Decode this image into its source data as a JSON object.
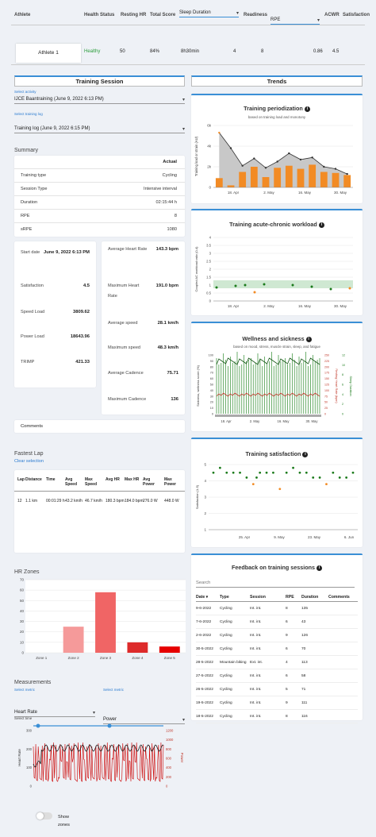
{
  "header": {
    "columns": [
      "Athlete",
      "Health Status",
      "Resting HR",
      "Total Score",
      "Sleep Duration",
      "Readiness",
      "RPE",
      "ACWR",
      "Satisfaction"
    ]
  },
  "athlete_row": {
    "name": "Athlete 1",
    "health": "Healthy",
    "resting_hr": "50",
    "total_score": "84%",
    "sleep": "8h30min",
    "readiness": "4",
    "rpe": "8",
    "acwr": "0.86",
    "satisfaction": "4.5"
  },
  "training_session": {
    "title": "Training Session",
    "activity_label": "Select activity",
    "activity_value": "IJCE Baantraining (June 9, 2022 6:13 PM)",
    "log_label": "Select training log",
    "log_value": "Training log (June 9, 2022 6:15 PM)"
  },
  "summary": {
    "title": "Summary",
    "actual_header": "Actual",
    "rows": [
      [
        "Training type",
        "Cycling"
      ],
      [
        "Session Type",
        "Intensive interval"
      ],
      [
        "Duration",
        "02:15:44 h"
      ],
      [
        "RPE",
        "8"
      ],
      [
        "sRPE",
        "1080"
      ]
    ]
  },
  "stats_left": [
    [
      "Start date",
      "June 9, 2022 6:13 PM"
    ],
    [
      "Satisfaction",
      "4.5"
    ],
    [
      "Speed Load",
      "3809.62"
    ],
    [
      "Power Load",
      "18643.96"
    ],
    [
      "TRIMP",
      "421.33"
    ]
  ],
  "stats_right": [
    [
      "Average Heart Rate",
      "143.3 bpm"
    ],
    [
      "Maximum Heart Rate",
      "191.0 bpm"
    ],
    [
      "Average speed",
      "28.1 km/h"
    ],
    [
      "Maximum speed",
      "48.3 km/h"
    ],
    [
      "Average Cadence",
      "75.71"
    ],
    [
      "Maximum Cadence",
      "136"
    ]
  ],
  "comments_label": "Comments",
  "fastest_lap": {
    "title": "Fastest Lap",
    "clear": "Clear selection",
    "headers": [
      "Lap",
      "Distance",
      "Time",
      "Avg Speed",
      "Max Speed",
      "Avg HR",
      "Max HR",
      "Avg Power",
      "Max Power"
    ],
    "row": [
      "12",
      "1.1 km",
      "00:01:29 h",
      "43.2 km/h",
      "46.7 km/h",
      "180.3 bpm",
      "184.0 bpm",
      "276.0 W",
      "448.0 W"
    ]
  },
  "hr_zones": {
    "title": "HR Zones"
  },
  "measurements": {
    "title": "Measurements",
    "metric_label": "Select metric",
    "metric1": "Heart Rate",
    "metric2": "Power",
    "time_label": "Select time",
    "show_zones": "Show zones",
    "y_left_label": "Heart Rate",
    "y_right_label": "Power"
  },
  "trends": {
    "title": "Trends"
  },
  "periodization": {
    "title": "Training periodization",
    "subtitle": "based on training load and monotony",
    "ylabel": "Training load or strain (AU)"
  },
  "acwr_chart": {
    "title": "Training acute-chronic workload",
    "ylabel": "Coupled AC workload ratio (0-4)"
  },
  "wellness": {
    "title": "Wellness and sickness",
    "subtitle": "based on mood, stress, muscle strain, sleep, and fatigue",
    "ylabel": "Sickness, wellness score (%)",
    "right1": "Resting Heart Rate (bpm)",
    "right2": "Sleep Duration"
  },
  "satisfaction_chart": {
    "title": "Training satisfaction",
    "ylabel": "Satisfaction (1-5)"
  },
  "feedback": {
    "title": "Feedback on training sessions",
    "search_placeholder": "Search",
    "headers": [
      "Date",
      "Type",
      "Session",
      "RPE",
      "Duration",
      "Comments"
    ],
    "rows": [
      [
        "9-6-2022",
        "Cycling",
        "Int. int.",
        "8",
        "135",
        ""
      ],
      [
        "7-6-2022",
        "Cycling",
        "Int. int.",
        "6",
        "43",
        ""
      ],
      [
        "2-6-2022",
        "Cycling",
        "Int. int.",
        "9",
        "126",
        ""
      ],
      [
        "30-5-2022",
        "Cycling",
        "Int. int.",
        "6",
        "70",
        ""
      ],
      [
        "28-5-2022",
        "Mountain biking",
        "Ext. int.",
        "4",
        "113",
        ""
      ],
      [
        "27-5-2022",
        "Cycling",
        "Int. int.",
        "6",
        "58",
        ""
      ],
      [
        "26-5-2022",
        "Cycling",
        "Int. int.",
        "5",
        "71",
        ""
      ],
      [
        "19-5-2022",
        "Cycling",
        "Int. int.",
        "9",
        "111",
        ""
      ],
      [
        "18-5-2022",
        "Cycling",
        "Int. int.",
        "8",
        "116",
        ""
      ]
    ]
  },
  "chart_data": [
    {
      "type": "bar",
      "title": "Training periodization",
      "ylabel": "Training load or strain (AU)",
      "x_ticks": [
        "18. Apr",
        "2. May",
        "16. May",
        "30. May"
      ],
      "y_ticks": [
        "0",
        "2k",
        "4k",
        "6k"
      ],
      "ylim": [
        0,
        6000
      ],
      "series": [
        {
          "values": [
            900,
            200,
            1500,
            2000,
            1000,
            1900,
            2100,
            1800,
            2200,
            1500,
            1400,
            1200
          ]
        },
        {
          "values": [
            5300,
            3800,
            2100,
            2800,
            1900,
            2500,
            3300,
            2700,
            2900,
            2000,
            1800,
            1300
          ]
        }
      ]
    },
    {
      "type": "scatter",
      "title": "Training acute-chronic workload",
      "ylabel": "Coupled AC workload ratio (0-4)",
      "x_ticks": [
        "18. Apr",
        "2. May",
        "16. May",
        "30. May"
      ],
      "y_ticks": [
        "0",
        "0.5",
        "1",
        "1.5",
        "2",
        "2.5",
        "3",
        "3.5",
        "4"
      ],
      "ylim": [
        0,
        4
      ],
      "points": [
        [
          0,
          0.85
        ],
        [
          2,
          0.95
        ],
        [
          3,
          1.0
        ],
        [
          4,
          0.55
        ],
        [
          5,
          1.05
        ],
        [
          8,
          1.0
        ],
        [
          10,
          0.9
        ],
        [
          12,
          0.75
        ],
        [
          14,
          0.8
        ]
      ],
      "band": [
        0.8,
        1.3
      ]
    },
    {
      "type": "line",
      "title": "Wellness and sickness",
      "ylabel": "Sickness, wellness score (%)",
      "y_ticks": [
        "0",
        "10",
        "20",
        "30",
        "40",
        "50",
        "60",
        "70",
        "80",
        "90",
        "100"
      ],
      "x_ticks": [
        "18. Apr",
        "2. May",
        "16. May",
        "30. May"
      ],
      "right_ticks_1": [
        "0",
        "25",
        "50",
        "75",
        "100",
        "125",
        "150",
        "175",
        "200",
        "225",
        "250"
      ],
      "right_ticks_2": [
        "0",
        "2",
        "4",
        "6",
        "8",
        "10",
        "12"
      ]
    },
    {
      "type": "scatter",
      "title": "Training satisfaction",
      "ylabel": "Satisfaction (1-5)",
      "y_ticks": [
        "1",
        "2",
        "3",
        "4",
        "5"
      ],
      "ylim": [
        1,
        5
      ],
      "x_ticks": [
        "25. Apr",
        "9. May",
        "23. May",
        "6. Jun"
      ],
      "points": [
        [
          0,
          4.5
        ],
        [
          1,
          4.8
        ],
        [
          2,
          4.5
        ],
        [
          3,
          4.5
        ],
        [
          4,
          4.5
        ],
        [
          5,
          4.2
        ],
        [
          6,
          3.8
        ],
        [
          6.5,
          4.2
        ],
        [
          7,
          4.5
        ],
        [
          8,
          4.5
        ],
        [
          9,
          4.5
        ],
        [
          10,
          3.5
        ],
        [
          11,
          4.5
        ],
        [
          12,
          4.8
        ],
        [
          13,
          4.5
        ],
        [
          14,
          4.5
        ],
        [
          15,
          4.2
        ],
        [
          16,
          4.2
        ],
        [
          17,
          3.8
        ],
        [
          18,
          4.5
        ],
        [
          19,
          4.2
        ],
        [
          20,
          4.2
        ],
        [
          21,
          4.5
        ]
      ]
    },
    {
      "type": "bar",
      "title": "HR Zones",
      "categories": [
        "Zone 1",
        "Zone 2",
        "Zone 3",
        "Zone 4",
        "Zone 5"
      ],
      "values": [
        0,
        25,
        58,
        10,
        6
      ],
      "y_ticks": [
        "0",
        "10",
        "20",
        "30",
        "40",
        "50",
        "60",
        "70"
      ],
      "ylim": [
        0,
        70
      ]
    },
    {
      "type": "line",
      "title": "Measurements",
      "ylabel": "Heart Rate",
      "y2label": "Power",
      "y_ticks": [
        "0",
        "100",
        "200",
        "300"
      ],
      "y2_ticks": [
        "0",
        "200",
        "400",
        "600",
        "800",
        "1000",
        "1200"
      ]
    }
  ]
}
